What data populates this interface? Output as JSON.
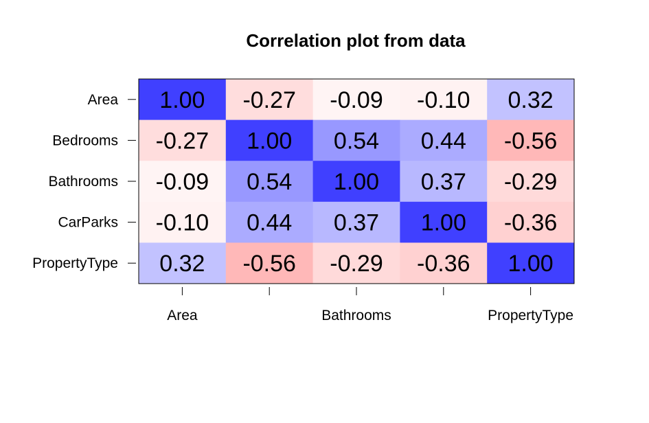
{
  "chart_data": {
    "type": "heatmap",
    "title": "Correlation plot from data",
    "xlabel": "",
    "ylabel": "",
    "variables": [
      "Area",
      "Bedrooms",
      "Bathrooms",
      "CarParks",
      "PropertyType"
    ],
    "x_tick_labels_shown": [
      "Area",
      "",
      "Bathrooms",
      "",
      "PropertyType"
    ],
    "y_tick_labels_shown": [
      "Area",
      "Bedrooms",
      "Bathrooms",
      "CarParks",
      "PropertyType"
    ],
    "matrix": [
      [
        1.0,
        -0.27,
        -0.09,
        -0.1,
        0.32
      ],
      [
        -0.27,
        1.0,
        0.54,
        0.44,
        -0.56
      ],
      [
        -0.09,
        0.54,
        1.0,
        0.37,
        -0.29
      ],
      [
        -0.1,
        0.44,
        0.37,
        1.0,
        -0.36
      ],
      [
        0.32,
        -0.56,
        -0.29,
        -0.36,
        1.0
      ]
    ],
    "value_format_decimals": 2,
    "color_scale": {
      "positive": "#4040ff",
      "negative": "#ff8080",
      "neutral": "#ffffff"
    },
    "grid": false,
    "legend": "none"
  }
}
